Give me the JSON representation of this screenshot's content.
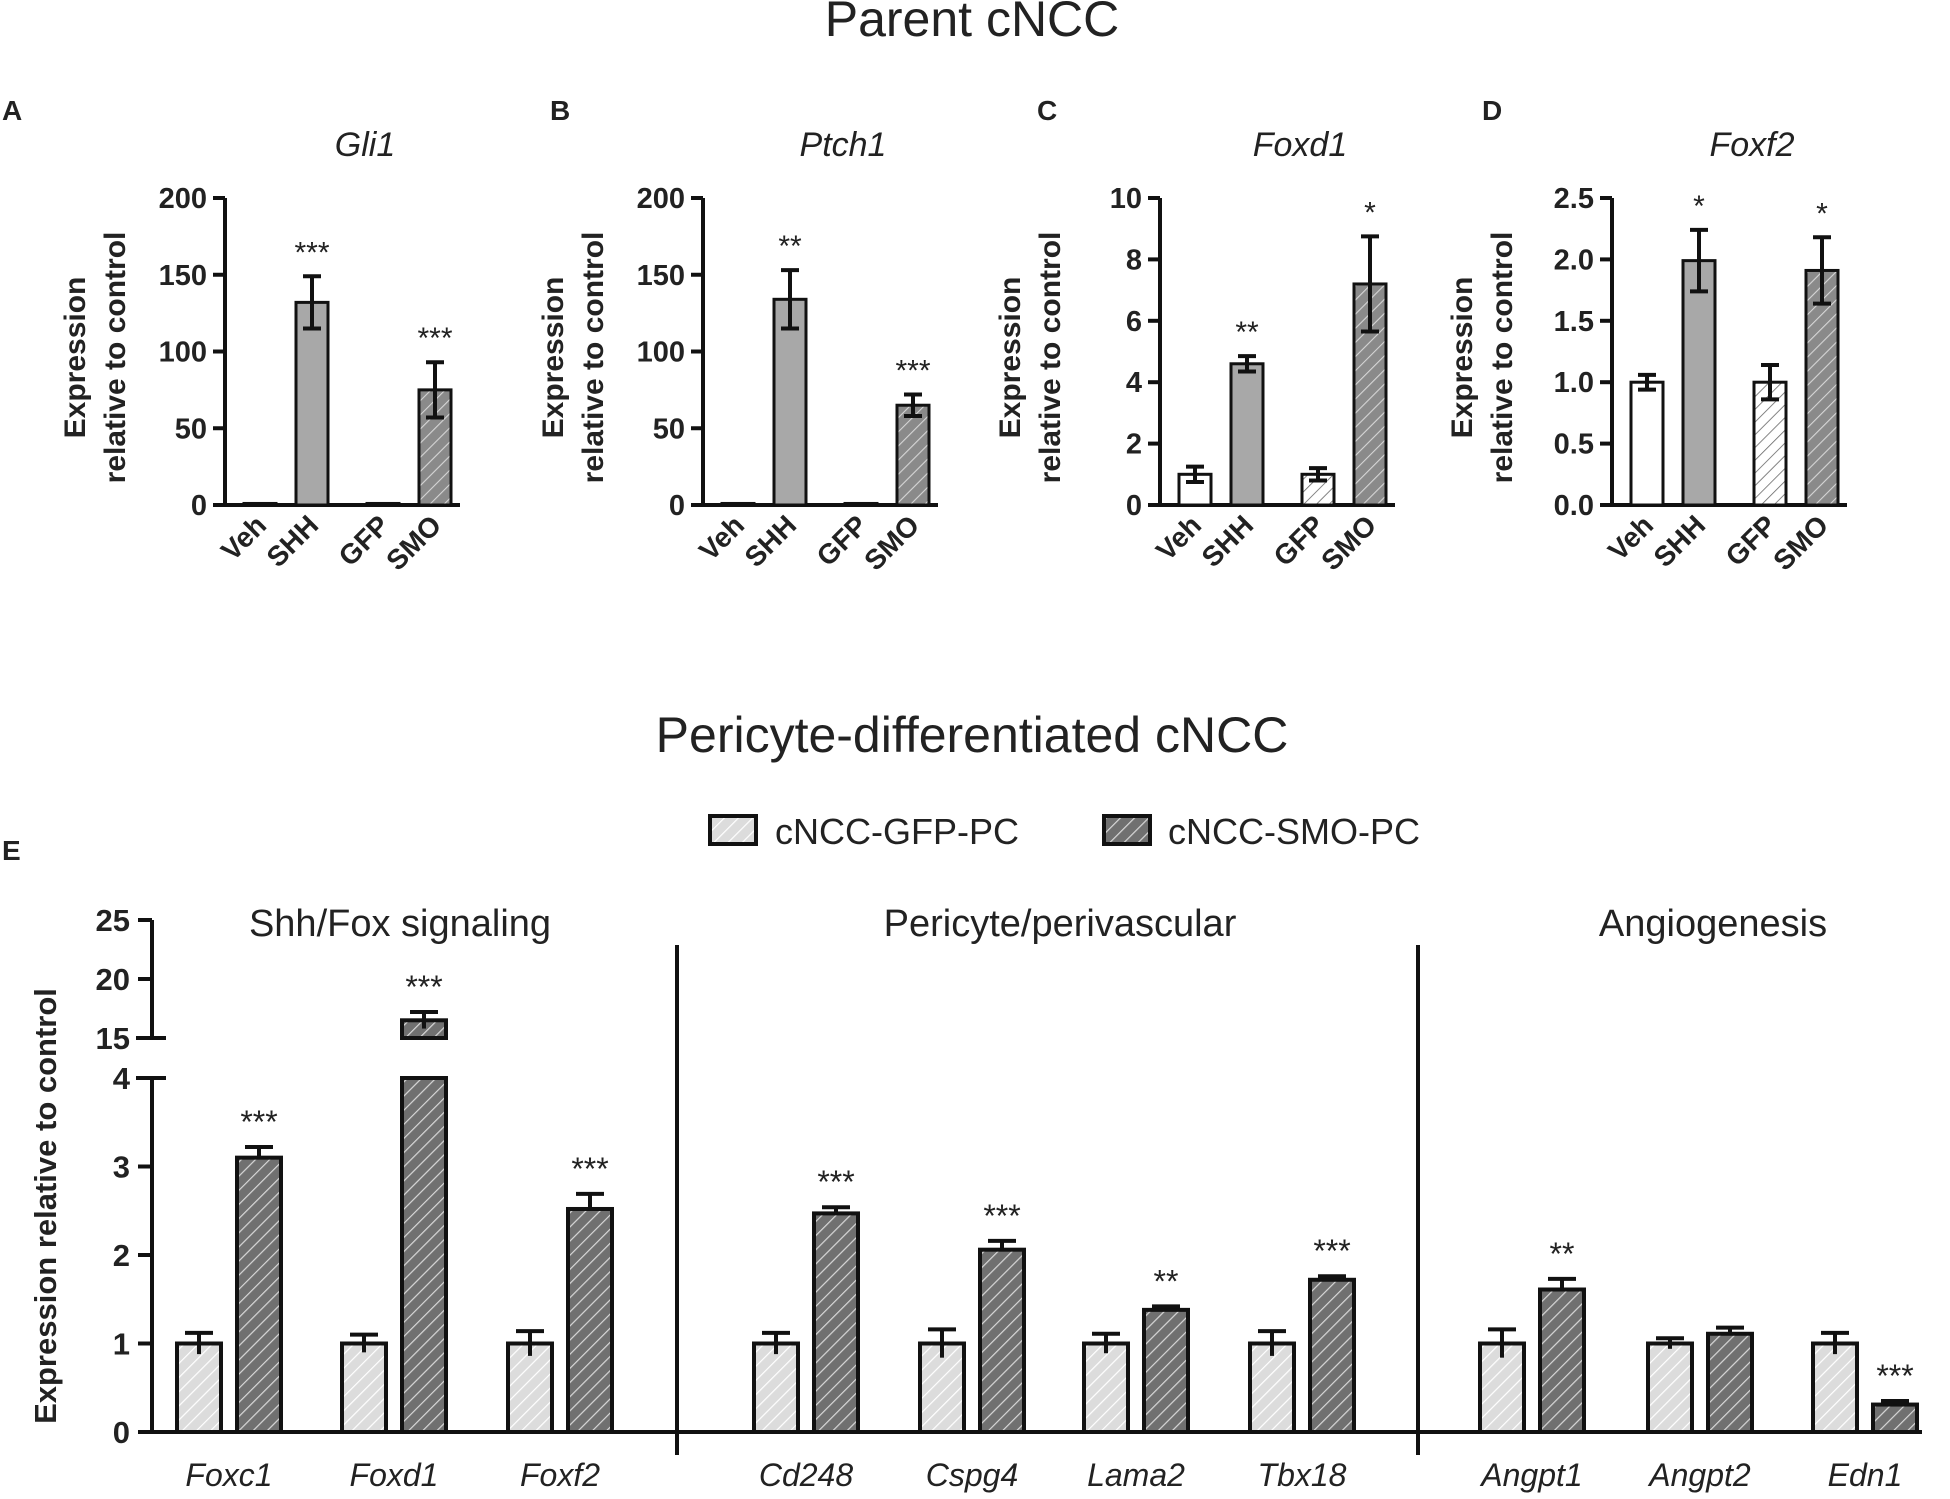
{
  "section_titles": {
    "parent": "Parent cNCC",
    "pericyte": "Pericyte-differentiated cNCC"
  },
  "colors": {
    "bar_gray": "#a8a8a8",
    "bar_dark": "#707070",
    "bar_light": "#dcdcdc",
    "white": "#ffffff",
    "ink": "#111111"
  },
  "chart_data": [
    {
      "panel": "A",
      "type": "bar",
      "title": "Gli1",
      "ylabel": [
        "Expression",
        "relative to control"
      ],
      "ylim": [
        0,
        200
      ],
      "yticks": [
        0,
        50,
        100,
        150,
        200
      ],
      "categories": [
        "Veh",
        "SHH",
        "GFP",
        "SMO"
      ],
      "values": [
        1,
        132,
        1,
        75
      ],
      "errors": [
        0,
        17,
        0,
        18
      ],
      "fills": [
        "white",
        "gray",
        "white-hatch",
        "gray-hatch"
      ],
      "significance": [
        "",
        "***",
        "",
        "***"
      ]
    },
    {
      "panel": "B",
      "type": "bar",
      "title": "Ptch1",
      "ylabel": [
        "Expression",
        "relative to control"
      ],
      "ylim": [
        0,
        200
      ],
      "yticks": [
        0,
        50,
        100,
        150,
        200
      ],
      "categories": [
        "Veh",
        "SHH",
        "GFP",
        "SMO"
      ],
      "values": [
        1,
        134,
        1,
        65
      ],
      "errors": [
        0,
        19,
        0,
        7
      ],
      "fills": [
        "white",
        "gray",
        "white-hatch",
        "gray-hatch"
      ],
      "significance": [
        "",
        "**",
        "",
        "***"
      ]
    },
    {
      "panel": "C",
      "type": "bar",
      "title": "Foxd1",
      "ylabel": [
        "Expression",
        "relative to control"
      ],
      "ylim": [
        0,
        10
      ],
      "yticks": [
        0,
        2,
        4,
        6,
        8,
        10
      ],
      "categories": [
        "Veh",
        "SHH",
        "GFP",
        "SMO"
      ],
      "values": [
        1.0,
        4.6,
        1.0,
        7.2
      ],
      "errors": [
        0.25,
        0.25,
        0.2,
        1.55
      ],
      "fills": [
        "white",
        "gray",
        "white-hatch",
        "gray-hatch"
      ],
      "significance": [
        "",
        "**",
        "",
        "*"
      ]
    },
    {
      "panel": "D",
      "type": "bar",
      "title": "Foxf2",
      "ylabel": [
        "Expression",
        "relative to control"
      ],
      "ylim": [
        0,
        2.5
      ],
      "yticks": [
        "0.0",
        "0.5",
        "1.0",
        "1.5",
        "2.0",
        "2.5"
      ],
      "categories": [
        "Veh",
        "SHH",
        "GFP",
        "SMO"
      ],
      "values": [
        1.0,
        1.99,
        1.0,
        1.91
      ],
      "errors": [
        0.06,
        0.25,
        0.14,
        0.27
      ],
      "fills": [
        "white",
        "gray",
        "white-hatch",
        "gray-hatch"
      ],
      "significance": [
        "",
        "*",
        "",
        "*"
      ]
    },
    {
      "panel": "E",
      "type": "bar",
      "ylabel": "Expression relative to control",
      "legend": [
        "cNCC-GFP-PC",
        "cNCC-SMO-PC"
      ],
      "yticks_lower": [
        0,
        1,
        2,
        3,
        4
      ],
      "yticks_upper": [
        15,
        20,
        25
      ],
      "axis_break": [
        4,
        15
      ],
      "groups": [
        {
          "label": "Shh/Fox signaling",
          "genes": [
            "Foxc1",
            "Foxd1",
            "Foxf2"
          ]
        },
        {
          "label": "Pericyte/perivascular",
          "genes": [
            "Cd248",
            "Cspg4",
            "Lama2",
            "Tbx18"
          ]
        },
        {
          "label": "Angiogenesis",
          "genes": [
            "Angpt1",
            "Angpt2",
            "Edn1"
          ]
        }
      ],
      "categories": [
        "Foxc1",
        "Foxd1",
        "Foxf2",
        "Cd248",
        "Cspg4",
        "Lama2",
        "Tbx18",
        "Angpt1",
        "Angpt2",
        "Edn1"
      ],
      "series": [
        {
          "name": "cNCC-GFP-PC",
          "values": [
            1.0,
            1.0,
            1.0,
            1.0,
            1.0,
            1.0,
            1.0,
            1.0,
            1.0,
            1.0
          ],
          "errors": [
            0.12,
            0.1,
            0.14,
            0.12,
            0.16,
            0.11,
            0.14,
            0.16,
            0.06,
            0.12
          ]
        },
        {
          "name": "cNCC-SMO-PC",
          "values": [
            3.1,
            16.5,
            2.52,
            2.47,
            2.06,
            1.38,
            1.72,
            1.61,
            1.11,
            0.31
          ],
          "errors": [
            0.12,
            0.7,
            0.17,
            0.07,
            0.1,
            0.04,
            0.04,
            0.12,
            0.07,
            0.04
          ]
        }
      ],
      "significance": [
        "***",
        "***",
        "***",
        "***",
        "***",
        "**",
        "***",
        "**",
        "",
        "***"
      ]
    }
  ]
}
